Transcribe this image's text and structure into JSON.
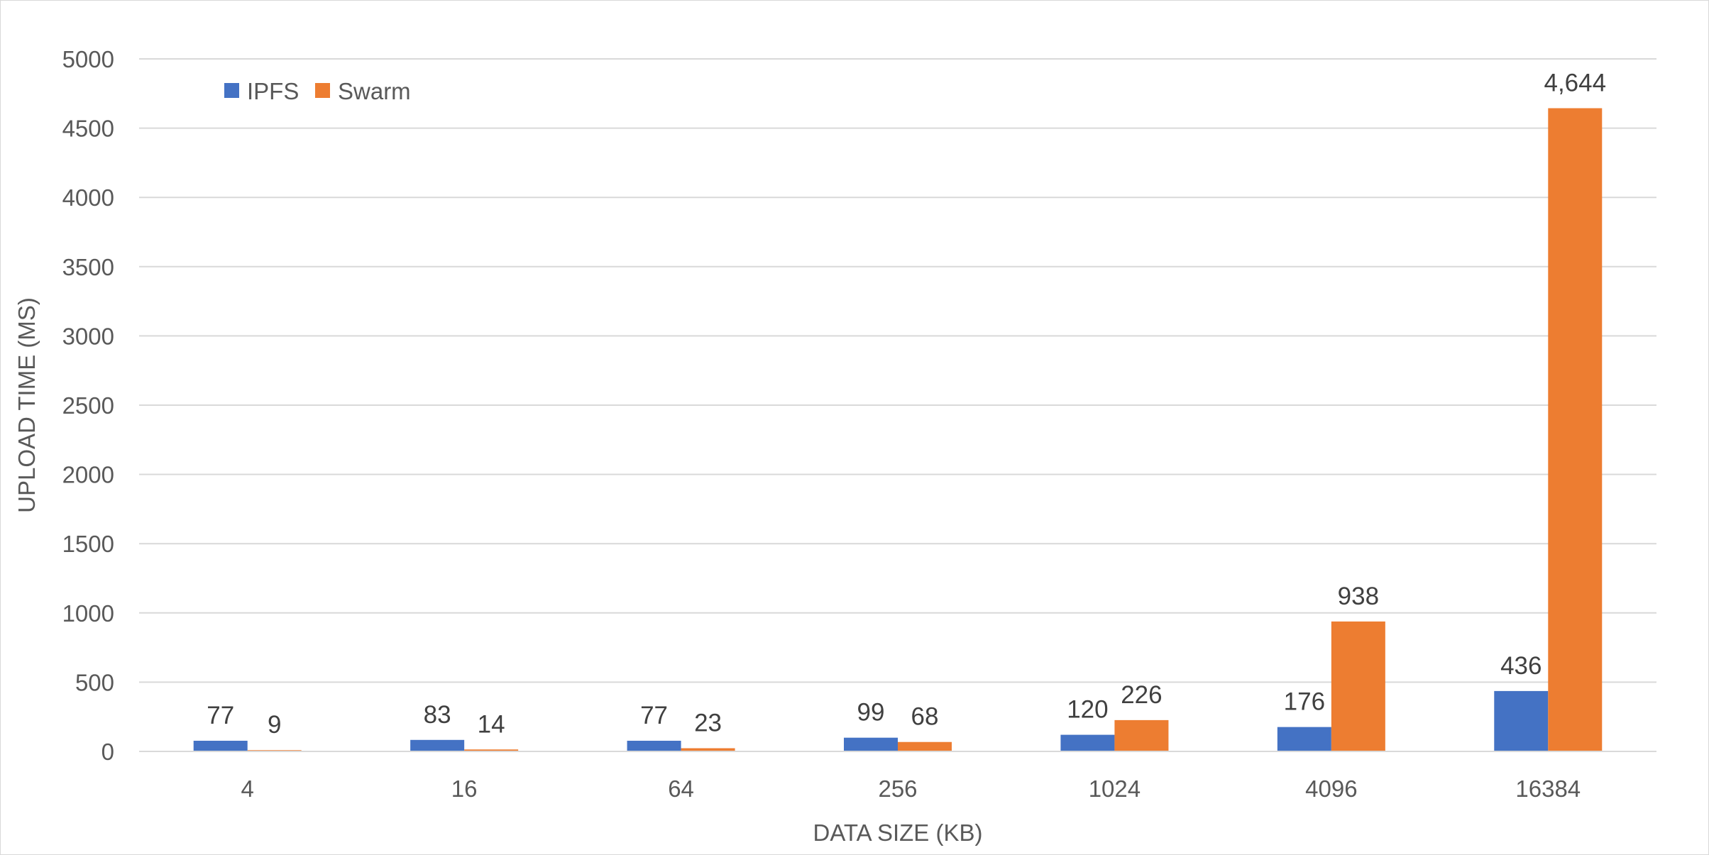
{
  "chart_data": {
    "type": "bar",
    "title": "",
    "xlabel": "DATA SIZE (KB)",
    "ylabel": "UPLOAD TIME (MS)",
    "categories": [
      "4",
      "16",
      "64",
      "256",
      "1024",
      "4096",
      "16384"
    ],
    "series": [
      {
        "name": "IPFS",
        "color": "#4472c4",
        "values": [
          77,
          83,
          77,
          99,
          120,
          176,
          436
        ],
        "labels": [
          "77",
          "83",
          "77",
          "99",
          "120",
          "176",
          "436"
        ]
      },
      {
        "name": "Swarm",
        "color": "#ed7d31",
        "values": [
          9,
          14,
          23,
          68,
          226,
          938,
          4644
        ],
        "labels": [
          "9",
          "14",
          "23",
          "68",
          "226",
          "938",
          "4,644"
        ]
      }
    ],
    "ylim": [
      0,
      5000
    ],
    "yticks": [
      "0",
      "500",
      "1000",
      "1500",
      "2000",
      "2500",
      "3000",
      "3500",
      "4000",
      "4500",
      "5000"
    ],
    "grid": true,
    "legend_position": "top-left"
  }
}
